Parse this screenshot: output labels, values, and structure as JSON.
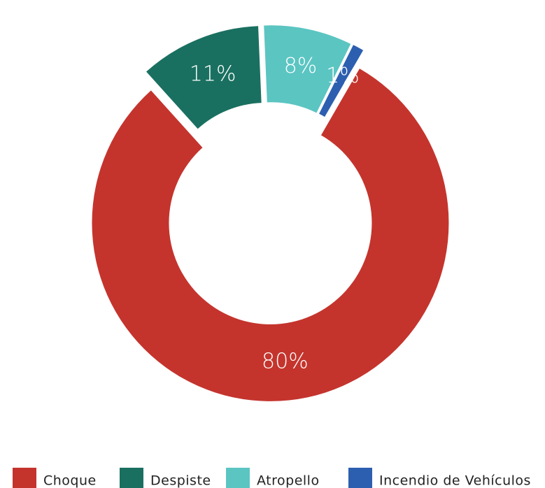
{
  "chart_data": {
    "type": "pie",
    "categories": [
      "Choque",
      "Despiste",
      "Atropello",
      "Incendio de Vehículos"
    ],
    "values": [
      80,
      11,
      8,
      1
    ],
    "value_labels": [
      "80%",
      "11%",
      "8%",
      "1%"
    ],
    "colors": [
      "#c4342d",
      "#1a7060",
      "#5bc5c2",
      "#2d5fb0"
    ],
    "donut": true
  }
}
